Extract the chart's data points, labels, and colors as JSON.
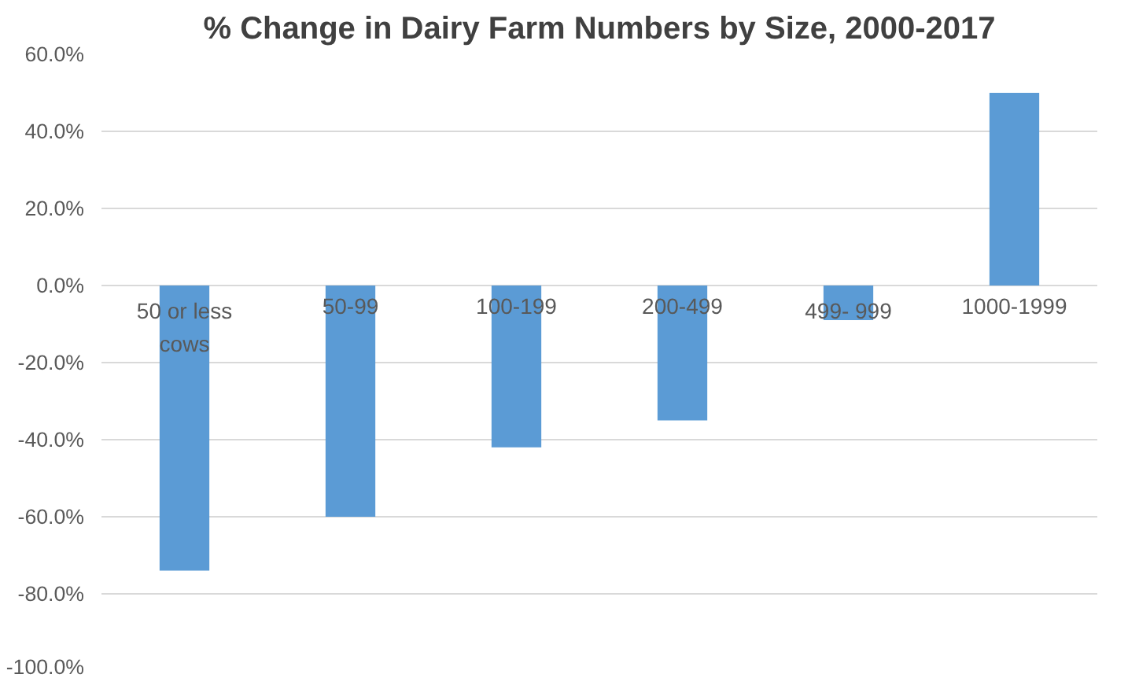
{
  "chart_data": {
    "type": "bar",
    "title": "% Change in Dairy Farm Numbers by Size, 2000-2017",
    "categories": [
      "50 or less\ncows",
      "50-99",
      "100-199",
      "200-499",
      "499- 999",
      "1000-1999"
    ],
    "values": [
      -74,
      -60,
      -42,
      -35,
      -9,
      50
    ],
    "color": "#5b9bd5",
    "ylim": [
      -100,
      60
    ],
    "yticks": [
      {
        "value": -100,
        "label": "-100.0%"
      },
      {
        "value": -80,
        "label": "-80.0%"
      },
      {
        "value": -60,
        "label": "-60.0%"
      },
      {
        "value": -40,
        "label": "-40.0%"
      },
      {
        "value": -20,
        "label": "-20.0%"
      },
      {
        "value": 0,
        "label": "0.0%"
      },
      {
        "value": 20,
        "label": "20.0%"
      },
      {
        "value": 40,
        "label": "40.0%"
      },
      {
        "value": 60,
        "label": "60.0%"
      }
    ],
    "grid": "y"
  }
}
